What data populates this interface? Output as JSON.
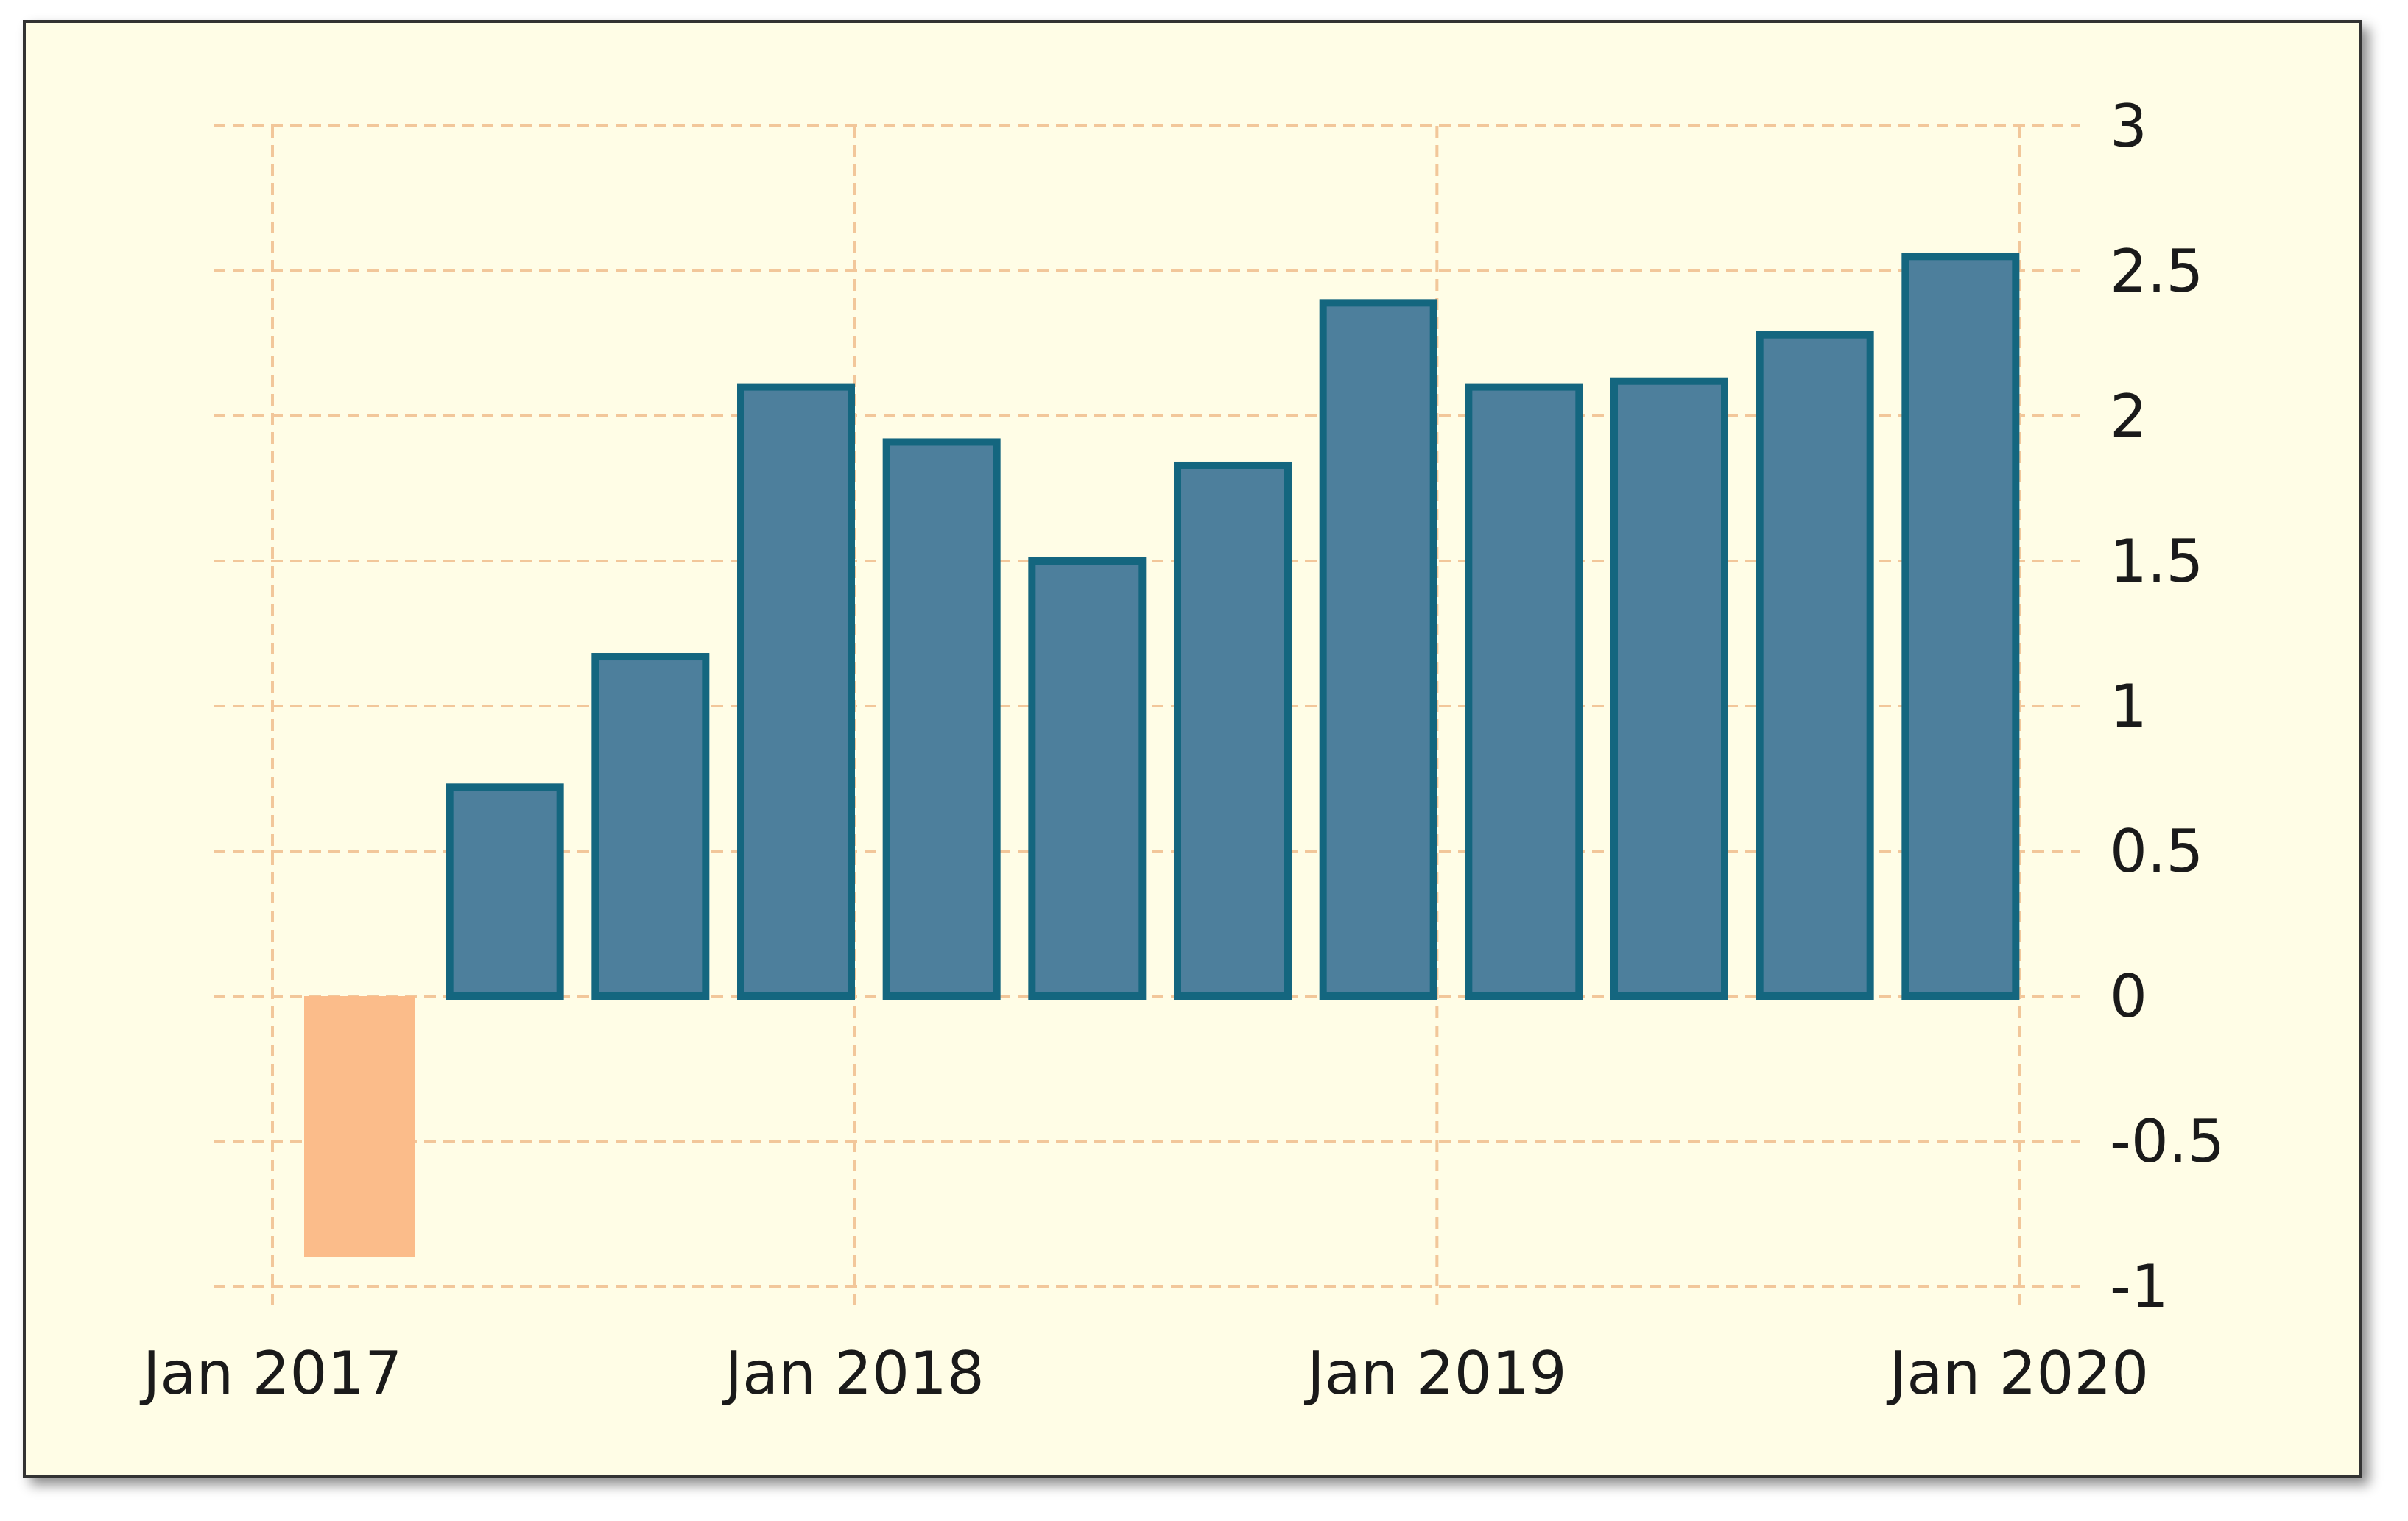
{
  "chart_data": {
    "type": "bar",
    "title": "",
    "xlabel": "",
    "ylabel": "",
    "x": [
      "2017-01",
      "2017-04",
      "2017-07",
      "2017-10",
      "2018-01",
      "2018-04",
      "2018-07",
      "2018-10",
      "2019-01",
      "2019-04",
      "2019-07",
      "2019-10"
    ],
    "values": [
      -0.9,
      0.72,
      1.17,
      2.1,
      1.91,
      1.5,
      1.83,
      2.39,
      2.1,
      2.12,
      2.28,
      2.55
    ],
    "x_ticks": [
      "Jan 2017",
      "Jan 2018",
      "Jan 2019",
      "Jan 2020"
    ],
    "y_ticks": [
      "3",
      "2.5",
      "2",
      "1.5",
      "1",
      "0.5",
      "0",
      "-0.5",
      "-1"
    ],
    "ylim": [
      -1,
      3
    ],
    "grid": true,
    "y_axis_side": "right",
    "colors": {
      "background": "#fffde6",
      "grid": "#f2c79a",
      "positive_fill": "#4d7f9c",
      "positive_stroke": "#14667f",
      "negative_fill": "#fbbc8a"
    }
  }
}
